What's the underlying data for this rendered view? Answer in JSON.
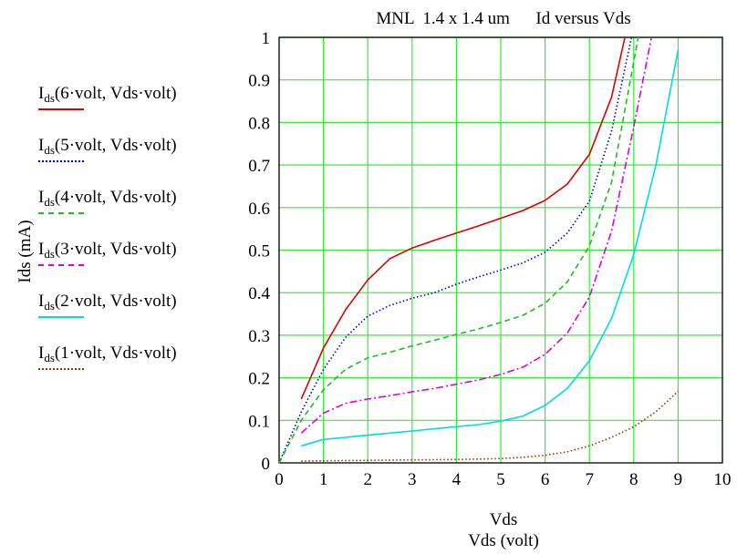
{
  "chart_data": {
    "type": "line",
    "title": "MNL  1.4 x 1.4 um      Id versus Vds",
    "xlabel_lines": [
      "Vds",
      "Vds (volt)"
    ],
    "ylabel": "Ids (mA)",
    "xlim": [
      0,
      10
    ],
    "ylim": [
      0,
      1
    ],
    "x_ticks": [
      "0",
      "1",
      "2",
      "3",
      "4",
      "5",
      "6",
      "7",
      "8",
      "9",
      "10"
    ],
    "y_ticks": [
      "0",
      "0.1",
      "0.2",
      "0.3",
      "0.4",
      "0.5",
      "0.6",
      "0.7",
      "0.8",
      "0.9",
      "1"
    ],
    "grid": true,
    "grid_color": "#33ee33",
    "legend_position": "left",
    "series": [
      {
        "name_prefix": "I",
        "name_sub": "ds",
        "name_args": "(6·volt, Vds·volt)",
        "color": "#dd0000",
        "dash": "",
        "x": [
          0.5,
          1,
          1.5,
          2,
          2.5,
          3,
          3.5,
          4,
          4.5,
          5,
          5.5,
          6,
          6.5,
          7,
          7.5,
          7.8
        ],
        "y": [
          0.15,
          0.27,
          0.36,
          0.43,
          0.48,
          0.505,
          0.523,
          0.54,
          0.557,
          0.575,
          0.593,
          0.617,
          0.655,
          0.725,
          0.86,
          1.0
        ]
      },
      {
        "name_prefix": "I",
        "name_sub": "ds",
        "name_args": "(5·volt, Vds·volt)",
        "color": "#0000cc",
        "dash": "1.5,2.5",
        "x": [
          0,
          0.5,
          1,
          1.5,
          2,
          2.5,
          3,
          3.5,
          4,
          4.5,
          5,
          5.5,
          6,
          6.5,
          7,
          7.5,
          7.95
        ],
        "y": [
          0,
          0.12,
          0.22,
          0.295,
          0.345,
          0.37,
          0.387,
          0.4,
          0.42,
          0.437,
          0.453,
          0.47,
          0.495,
          0.54,
          0.615,
          0.78,
          1.0
        ]
      },
      {
        "name_prefix": "I",
        "name_sub": "ds",
        "name_args": "(4·volt, Vds·volt)",
        "color": "#22bb22",
        "dash": "6,4",
        "x": [
          0,
          0.5,
          1,
          1.5,
          2,
          2.5,
          3,
          3.5,
          4,
          4.5,
          5,
          5.5,
          6,
          6.5,
          7,
          7.5,
          8.1
        ],
        "y": [
          0,
          0.1,
          0.172,
          0.22,
          0.247,
          0.26,
          0.275,
          0.288,
          0.302,
          0.315,
          0.33,
          0.347,
          0.375,
          0.425,
          0.51,
          0.66,
          1.0
        ]
      },
      {
        "name_prefix": "I",
        "name_sub": "ds",
        "name_args": "(3·volt, Vds·volt)",
        "color": "#dd00dd",
        "dash": "8,3,2,3",
        "x": [
          0.5,
          1,
          1.5,
          2,
          2.5,
          3,
          3.5,
          4,
          4.5,
          5,
          5.5,
          6,
          6.5,
          7,
          7.5,
          8,
          8.4
        ],
        "y": [
          0.07,
          0.117,
          0.14,
          0.15,
          0.158,
          0.167,
          0.175,
          0.185,
          0.195,
          0.208,
          0.225,
          0.255,
          0.305,
          0.39,
          0.545,
          0.79,
          1.0
        ]
      },
      {
        "name_prefix": "I",
        "name_sub": "ds",
        "name_args": "(2·volt, Vds·volt)",
        "color": "#00dddd",
        "dash": "",
        "x": [
          0.5,
          1,
          1.5,
          2,
          2.5,
          3,
          3.5,
          4,
          4.5,
          5,
          5.5,
          6,
          6.5,
          7,
          7.5,
          8,
          8.5,
          9
        ],
        "y": [
          0.04,
          0.055,
          0.06,
          0.065,
          0.07,
          0.075,
          0.08,
          0.085,
          0.09,
          0.098,
          0.11,
          0.135,
          0.175,
          0.24,
          0.34,
          0.49,
          0.7,
          0.97
        ]
      },
      {
        "name_prefix": "I",
        "name_sub": "ds",
        "name_args": "(1·volt, Vds·volt)",
        "color": "#993300",
        "dash": "1.5,2.5",
        "x": [
          0.5,
          1,
          2,
          3,
          4,
          5,
          5.5,
          6,
          6.5,
          7,
          7.5,
          8,
          8.5,
          9
        ],
        "y": [
          0.004,
          0.005,
          0.006,
          0.007,
          0.008,
          0.01,
          0.013,
          0.018,
          0.026,
          0.04,
          0.06,
          0.085,
          0.12,
          0.168
        ]
      }
    ]
  }
}
